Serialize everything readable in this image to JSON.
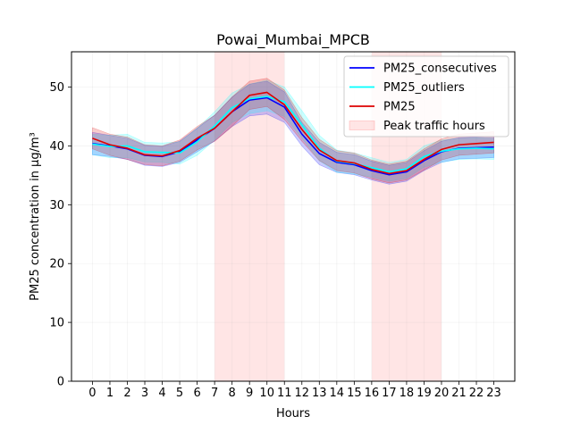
{
  "chart_data": {
    "type": "line",
    "title": "Powai_Mumbai_MPCB",
    "xlabel": "Hours",
    "ylabel": "PM25 concentration in µg/m³",
    "x": [
      0,
      1,
      2,
      3,
      4,
      5,
      6,
      7,
      8,
      9,
      10,
      11,
      12,
      13,
      14,
      15,
      16,
      17,
      18,
      19,
      20,
      21,
      22,
      23
    ],
    "xlim": [
      -1.2,
      24.2
    ],
    "ylim": [
      0,
      56
    ],
    "yticks": [
      0,
      10,
      20,
      30,
      40,
      50
    ],
    "grid": true,
    "legend_position": "top-right",
    "shaded_regions": [
      {
        "name": "Peak traffic hours",
        "ranges": [
          [
            7,
            11
          ],
          [
            16,
            20
          ]
        ],
        "color": "#ff0000",
        "opacity": 0.1
      }
    ],
    "series": [
      {
        "name": "PM25_consecutives",
        "color": "#0000ff",
        "values": [
          40.4,
          40.0,
          39.5,
          38.4,
          38.2,
          39.0,
          41.0,
          43.0,
          45.8,
          47.8,
          48.2,
          46.6,
          42.0,
          38.7,
          37.2,
          36.8,
          35.8,
          35.1,
          35.6,
          37.5,
          39.0,
          39.6,
          39.7,
          39.8
        ],
        "upper": [
          42.3,
          41.8,
          41.3,
          40.1,
          39.9,
          40.8,
          43.0,
          45.2,
          48.3,
          50.5,
          51.0,
          49.2,
          44.0,
          40.6,
          38.9,
          38.5,
          37.4,
          36.7,
          37.2,
          39.2,
          40.8,
          41.4,
          41.5,
          41.6
        ],
        "lower": [
          38.5,
          38.2,
          37.7,
          36.7,
          36.5,
          37.2,
          39.0,
          40.8,
          43.3,
          45.1,
          45.4,
          44.0,
          40.0,
          36.8,
          35.5,
          35.1,
          34.2,
          33.5,
          34.0,
          35.8,
          37.2,
          37.8,
          37.9,
          38.0
        ]
      },
      {
        "name": "PM25_outliers",
        "color": "#00ffff",
        "values": [
          40.3,
          39.9,
          40.0,
          39.0,
          38.9,
          38.8,
          40.7,
          43.4,
          46.5,
          48.0,
          48.4,
          47.5,
          43.6,
          39.6,
          37.4,
          37.0,
          36.3,
          35.6,
          36.1,
          38.2,
          39.1,
          39.5,
          39.6,
          39.5
        ],
        "upper": [
          42.0,
          41.8,
          42.0,
          40.6,
          40.5,
          40.7,
          43.0,
          45.8,
          49.0,
          50.5,
          51.2,
          50.0,
          46.0,
          41.8,
          39.3,
          38.8,
          38.0,
          37.2,
          37.7,
          40.0,
          41.0,
          41.3,
          41.4,
          41.3
        ],
        "lower": [
          38.5,
          38.0,
          38.0,
          37.3,
          37.2,
          36.9,
          38.4,
          41.0,
          44.0,
          45.5,
          46.0,
          45.0,
          41.3,
          37.5,
          35.5,
          35.2,
          34.7,
          34.0,
          34.5,
          36.4,
          37.2,
          37.7,
          37.8,
          37.7
        ]
      },
      {
        "name": "PM25",
        "color": "#dd0000",
        "values": [
          41.3,
          40.2,
          39.6,
          38.5,
          38.3,
          39.2,
          41.3,
          43.0,
          45.8,
          48.6,
          49.1,
          47.0,
          42.8,
          39.3,
          37.5,
          37.1,
          36.0,
          35.3,
          35.8,
          37.7,
          39.4,
          40.2,
          40.4,
          40.6
        ],
        "upper": [
          43.1,
          42.0,
          41.5,
          40.2,
          40.0,
          41.0,
          43.3,
          45.2,
          48.3,
          51.0,
          51.5,
          49.5,
          44.8,
          41.1,
          39.2,
          38.8,
          37.6,
          36.9,
          37.4,
          39.5,
          41.2,
          42.0,
          42.2,
          42.4
        ],
        "lower": [
          39.5,
          38.4,
          37.7,
          36.8,
          36.6,
          37.4,
          39.3,
          40.8,
          43.3,
          46.2,
          46.7,
          44.5,
          40.8,
          37.5,
          35.8,
          35.4,
          34.4,
          33.7,
          34.2,
          35.9,
          37.6,
          38.4,
          38.6,
          38.8
        ]
      }
    ]
  }
}
